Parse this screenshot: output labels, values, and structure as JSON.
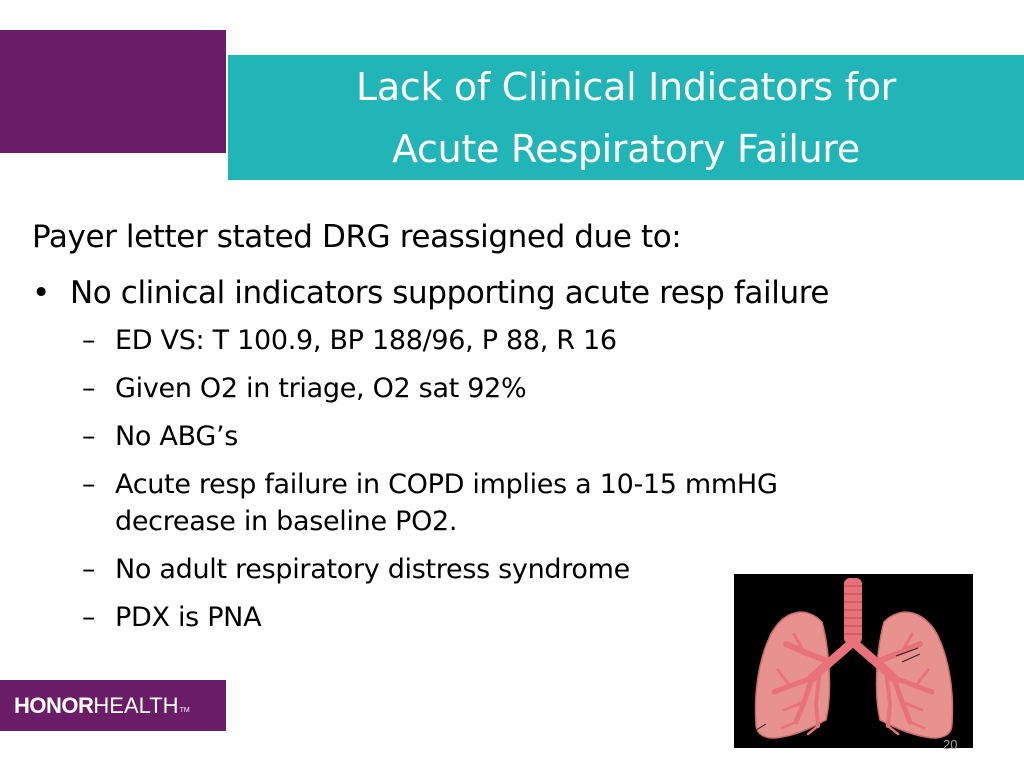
{
  "colors": {
    "purple": "#6b1c66",
    "teal": "#21b5b8",
    "lung": "#e8928f",
    "airway": "#e9717a"
  },
  "title": {
    "line1": "Lack of Clinical Indicators for",
    "line2": "Acute Respiratory Failure"
  },
  "intro": "Payer letter stated DRG reassigned due to:",
  "bullet": {
    "symbol": "•",
    "text": "No clinical indicators supporting acute resp failure"
  },
  "sub_dash": "–",
  "subs": [
    "ED VS: T 100.9, BP 188/96, P 88, R 16",
    "Given O2 in triage, O2 sat 92%",
    "No ABG’s",
    "Acute resp failure in COPD implies a 10-15 mmHG\ndecrease in baseline PO2.",
    "No adult respiratory distress syndrome",
    "PDX is PNA"
  ],
  "image": {
    "icon": "lungs-illustration"
  },
  "logo": {
    "bold": "HONOR",
    "regular": "HEALTH",
    "tm": "TM"
  },
  "slide_number": "20"
}
